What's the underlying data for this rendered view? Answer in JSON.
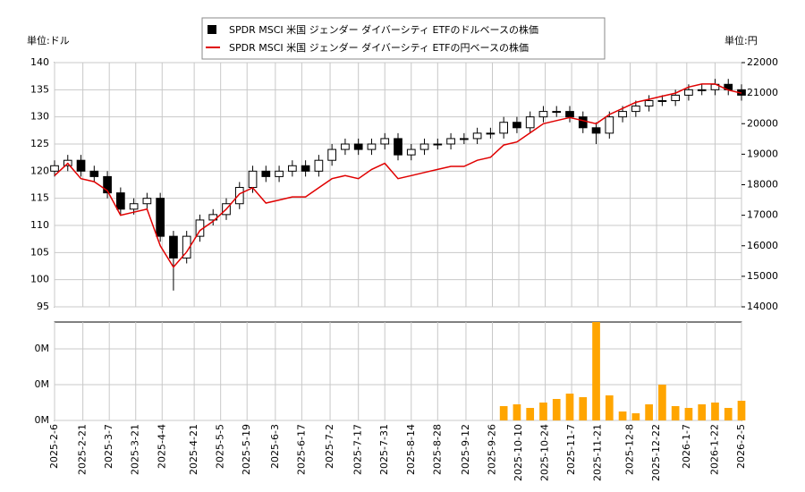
{
  "chart_data": {
    "type": "candlestick",
    "legend": [
      "SPDR MSCI 米国 ジェンダー ダイバーシティ ETFのドルベースの株価",
      "SPDR MSCI 米国 ジェンダー ダイバーシティ ETFの円ベースの株価"
    ],
    "y_unit_label": "単位:ドル",
    "y2_unit_label": "単位:円",
    "grid": true,
    "x": [
      "2025-2-6",
      "2025-2-13",
      "2025-2-20",
      "2025-2-27",
      "2025-3-6",
      "2025-3-13",
      "2025-3-20",
      "2025-3-27",
      "2025-4-3",
      "2025-4-10",
      "2025-4-17",
      "2025-4-24",
      "2025-5-1",
      "2025-5-8",
      "2025-5-15",
      "2025-5-22",
      "2025-5-29",
      "2025-6-5",
      "2025-6-12",
      "2025-6-19",
      "2025-6-26",
      "2025-7-3",
      "2025-7-10",
      "2025-7-17",
      "2025-7-24",
      "2025-7-31",
      "2025-8-7",
      "2025-8-14",
      "2025-8-21",
      "2025-8-28",
      "2025-9-4",
      "2025-9-11",
      "2025-9-18",
      "2025-9-25",
      "2025-10-2",
      "2025-10-9",
      "2025-10-16",
      "2025-10-23",
      "2025-10-30",
      "2025-11-6",
      "2025-11-13",
      "2025-11-20",
      "2025-11-27",
      "2025-12-4",
      "2025-12-11",
      "2025-12-18",
      "2025-12-25",
      "2026-1-1",
      "2026-1-8",
      "2026-1-15",
      "2026-1-22",
      "2026-1-29",
      "2026-2-5"
    ],
    "candles": {
      "color_up": "#ffffff",
      "color_down": "#000000",
      "open": [
        120,
        121,
        122,
        120,
        119,
        116,
        113,
        114,
        115,
        108,
        104,
        108,
        111,
        112,
        114,
        117,
        120,
        119,
        120,
        121,
        120,
        122,
        124,
        125,
        124,
        125,
        126,
        123,
        124,
        125,
        125,
        126,
        126,
        127,
        127,
        129,
        128,
        130,
        131,
        131,
        130,
        128,
        127,
        130,
        131,
        132,
        133,
        133,
        134,
        135,
        135,
        136,
        135
      ],
      "high": [
        122,
        123,
        123,
        121,
        120,
        117,
        115,
        116,
        116,
        109,
        109,
        112,
        113,
        115,
        118,
        121,
        121,
        121,
        122,
        122,
        123,
        125,
        126,
        126,
        126,
        127,
        127,
        125,
        126,
        126,
        127,
        127,
        128,
        128,
        130,
        130,
        131,
        132,
        132,
        132,
        131,
        129,
        131,
        132,
        133,
        134,
        134,
        135,
        136,
        136,
        137,
        137,
        136
      ],
      "low": [
        119,
        120,
        119,
        118,
        115,
        112,
        112,
        113,
        107,
        98,
        103,
        107,
        110,
        111,
        113,
        116,
        118,
        118,
        119,
        119,
        119,
        121,
        123,
        123,
        123,
        124,
        122,
        122,
        123,
        124,
        124,
        125,
        125,
        126,
        126,
        127,
        127,
        129,
        130,
        129,
        127,
        125,
        126,
        129,
        130,
        131,
        132,
        132,
        133,
        134,
        134,
        134,
        133
      ],
      "close": [
        121,
        122,
        120,
        119,
        116,
        113,
        114,
        115,
        108,
        104,
        108,
        111,
        112,
        114,
        117,
        120,
        119,
        120,
        121,
        120,
        122,
        124,
        125,
        124,
        125,
        126,
        123,
        124,
        125,
        125,
        126,
        126,
        127,
        127,
        129,
        128,
        130,
        131,
        131,
        130,
        128,
        127,
        130,
        131,
        132,
        133,
        133,
        134,
        135,
        135,
        136,
        135,
        134
      ]
    },
    "series": [
      {
        "name": "SPDR MSCI 米国 ジェンダー ダイバーシティ ETFの円ベースの株価",
        "color": "#e00000",
        "axis": "y2",
        "values": [
          18300,
          18700,
          18200,
          18100,
          17800,
          17000,
          17100,
          17200,
          16000,
          15300,
          15800,
          16500,
          16800,
          17200,
          17700,
          17900,
          17400,
          17500,
          17600,
          17600,
          17900,
          18200,
          18300,
          18200,
          18500,
          18700,
          18200,
          18300,
          18400,
          18500,
          18600,
          18600,
          18800,
          18900,
          19300,
          19400,
          19700,
          20000,
          20100,
          20200,
          20100,
          20000,
          20300,
          20500,
          20700,
          20800,
          20900,
          21000,
          21200,
          21300,
          21300,
          21100,
          21000
        ]
      }
    ],
    "volume": {
      "color": "#ffa500",
      "values": [
        null,
        null,
        null,
        null,
        null,
        null,
        null,
        null,
        null,
        null,
        null,
        null,
        null,
        null,
        null,
        null,
        null,
        null,
        null,
        null,
        null,
        null,
        null,
        null,
        null,
        null,
        null,
        null,
        null,
        null,
        null,
        null,
        null,
        null,
        8000,
        9000,
        7000,
        10000,
        12000,
        15000,
        13000,
        55000,
        14000,
        5000,
        4000,
        9000,
        20000,
        8000,
        7000,
        9000,
        10000,
        7000,
        11000
      ],
      "ylim": [
        0,
        55000
      ],
      "yticks": [
        {
          "value": 0,
          "label": "0M"
        },
        {
          "value": 20000,
          "label": "0M"
        },
        {
          "value": 40000,
          "label": "0M"
        }
      ]
    },
    "ylim": [
      95,
      140
    ],
    "yticks": [
      95,
      100,
      105,
      110,
      115,
      120,
      125,
      130,
      135,
      140
    ],
    "y2lim": [
      14000,
      22000
    ],
    "y2ticks": [
      14000,
      15000,
      16000,
      17000,
      18000,
      19000,
      20000,
      21000,
      22000
    ],
    "xlim": [
      "2025-2-6",
      "2026-2-5"
    ],
    "xticks": [
      "2025-2-6",
      "2025-2-21",
      "2025-3-7",
      "2025-3-21",
      "2025-4-4",
      "2025-4-21",
      "2025-5-5",
      "2025-5-19",
      "2025-6-3",
      "2025-6-17",
      "2025-7-2",
      "2025-7-17",
      "2025-7-31",
      "2025-8-14",
      "2025-8-28",
      "2025-9-12",
      "2025-9-26",
      "2025-10-10",
      "2025-10-24",
      "2025-11-7",
      "2025-11-21",
      "2025-12-8",
      "2025-12-22",
      "2026-1-7",
      "2026-1-22",
      "2026-2-5"
    ]
  }
}
